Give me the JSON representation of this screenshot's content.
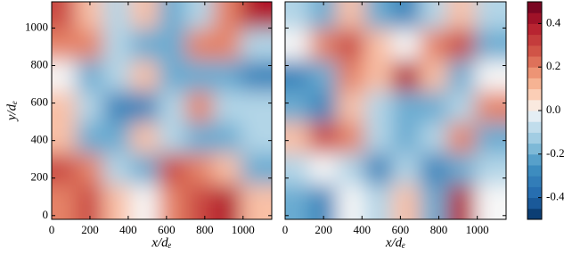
{
  "chart_data": [
    {
      "type": "heatmap",
      "xlabel": "x/dₑ",
      "ylabel": "y/dₑ",
      "xlim": [
        0,
        1150
      ],
      "ylim": [
        -20,
        1140
      ],
      "xticks": [
        0,
        200,
        400,
        600,
        800,
        1000
      ],
      "yticks": [
        0,
        200,
        400,
        600,
        800,
        1000
      ],
      "clim": [
        -0.5,
        0.5
      ],
      "x": [
        72,
        216,
        359,
        503,
        647,
        791,
        934,
        1078
      ],
      "y": [
        1057,
        892,
        726,
        560,
        394,
        229,
        63
      ],
      "z": [
        [
          0.3,
          0.1,
          -0.1,
          0.1,
          -0.2,
          -0.1,
          0.2,
          0.4
        ],
        [
          0.2,
          0.2,
          -0.1,
          -0.2,
          -0.2,
          0.2,
          0.2,
          -0.1
        ],
        [
          0.0,
          -0.2,
          -0.1,
          0.1,
          -0.2,
          -0.2,
          -0.2,
          -0.3
        ],
        [
          0.1,
          -0.1,
          -0.3,
          -0.3,
          -0.1,
          0.2,
          -0.1,
          -0.1
        ],
        [
          0.1,
          -0.2,
          -0.2,
          0.1,
          -0.1,
          -0.2,
          -0.2,
          -0.1
        ],
        [
          0.3,
          0.2,
          -0.1,
          -0.2,
          0.3,
          0.2,
          0.1,
          -0.2
        ],
        [
          0.2,
          0.3,
          0.1,
          0.0,
          0.2,
          0.3,
          0.4,
          0.1
        ]
      ]
    },
    {
      "type": "heatmap",
      "xlabel": "x/dₑ",
      "xlim": [
        0,
        1150
      ],
      "ylim": [
        -20,
        1140
      ],
      "xticks": [
        0,
        200,
        400,
        600,
        800,
        1000
      ],
      "yticks": [
        0,
        200,
        400,
        600,
        800,
        1000
      ],
      "clim": [
        -0.5,
        0.5
      ],
      "cticks": [
        -0.4,
        -0.2,
        {
          "value": 0,
          "label": "0.0"
        },
        0.2,
        0.4
      ],
      "x": [
        72,
        216,
        359,
        503,
        647,
        791,
        934,
        1078
      ],
      "y": [
        1057,
        892,
        726,
        560,
        394,
        229,
        63
      ],
      "z": [
        [
          -0.1,
          -0.2,
          0.1,
          -0.2,
          -0.3,
          -0.1,
          0.1,
          -0.1
        ],
        [
          0.0,
          0.2,
          0.3,
          0.1,
          0.0,
          0.2,
          0.3,
          -0.2
        ],
        [
          -0.3,
          -0.2,
          0.2,
          0.1,
          0.4,
          0.1,
          -0.2,
          0.0
        ],
        [
          -0.2,
          -0.3,
          0.1,
          -0.1,
          -0.2,
          -0.2,
          -0.1,
          0.2
        ],
        [
          0.1,
          0.3,
          0.2,
          -0.1,
          -0.2,
          -0.1,
          0.2,
          -0.2
        ],
        [
          -0.1,
          0.0,
          -0.1,
          -0.3,
          -0.1,
          -0.3,
          -0.2,
          -0.1
        ],
        [
          -0.2,
          -0.3,
          0.0,
          -0.1,
          0.1,
          -0.2,
          0.4,
          0.0
        ]
      ]
    }
  ]
}
